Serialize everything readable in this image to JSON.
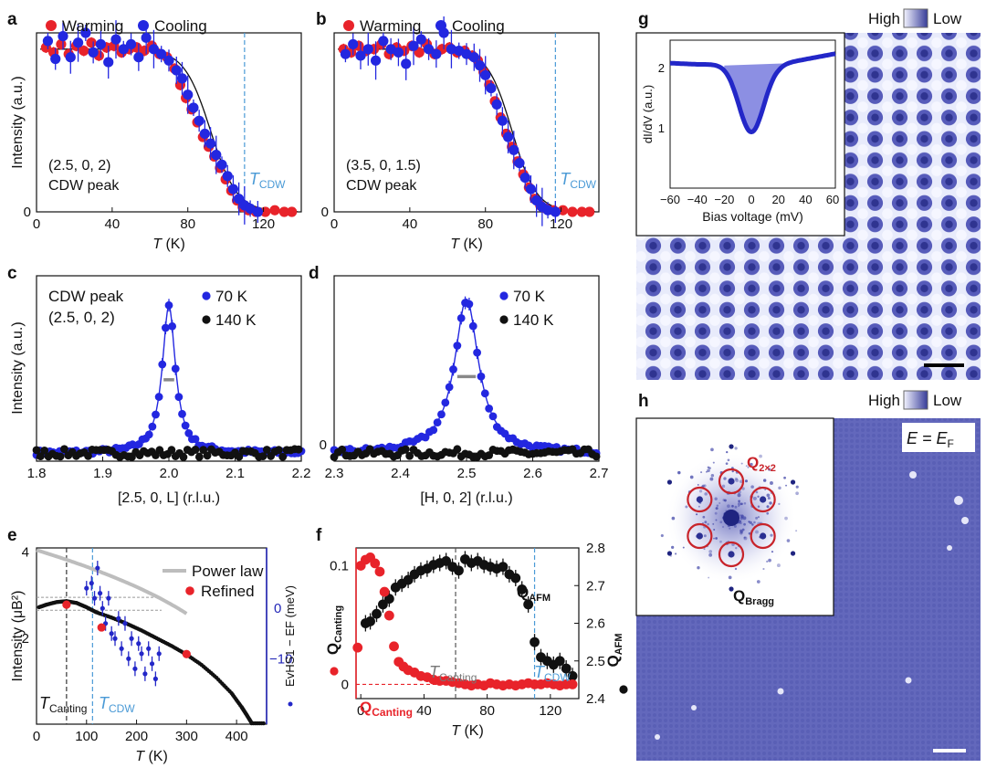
{
  "figure": {
    "panel_labels": [
      "a",
      "b",
      "c",
      "d",
      "e",
      "f",
      "g",
      "h"
    ],
    "panels": {
      "a": {
        "legend": [
          "Warming",
          "Cooling"
        ],
        "xlabel": [
          "T",
          " (K)"
        ],
        "ylabel": "Intensity (a.u.)",
        "xticks": [
          "0",
          "40",
          "80",
          "120"
        ],
        "yticks": [
          "0"
        ],
        "annot": [
          "(2.5, 0, 2)",
          "CDW peak"
        ],
        "tcdw": [
          "T",
          "CDW"
        ]
      },
      "b": {
        "legend": [
          "Warming",
          "Cooling"
        ],
        "xlabel": [
          "T",
          " (K)"
        ],
        "xticks": [
          "0",
          "40",
          "80",
          "120"
        ],
        "yticks": [
          "0"
        ],
        "annot": [
          "(3.5, 0, 1.5)",
          "CDW peak"
        ],
        "tcdw": [
          "T",
          "CDW"
        ]
      },
      "c": {
        "legend": [
          "70 K",
          "140 K"
        ],
        "xlabel": "[2.5, 0, L] (r.l.u.)",
        "ylabel": "Intensity (a.u.)",
        "xticks": [
          "1.8",
          "1.9",
          "2.0",
          "2.1",
          "2.2"
        ],
        "annot": [
          "CDW peak",
          "(2.5, 0, 2)"
        ]
      },
      "d": {
        "legend": [
          "70 K",
          "140 K"
        ],
        "xlabel": "[H, 0, 2] (r.l.u.)",
        "xticks": [
          "2.3",
          "2.4",
          "2.5",
          "2.6",
          "2.7"
        ],
        "yticks": [
          "0"
        ]
      },
      "e": {
        "legend": [
          "Power law",
          "Refined"
        ],
        "xlabel": [
          "T",
          " (K)"
        ],
        "ylabel": "Intensity  (μB²)",
        "xticks": [
          "0",
          "100",
          "200",
          "300",
          "400"
        ],
        "yticks_left": [
          "2",
          "4"
        ],
        "yticks_right": [
          "0",
          "−10"
        ],
        "ylabel_right": "EvHS1 − EF (meV)",
        "tcanting": [
          "T",
          "Canting"
        ],
        "tcdw": [
          "T",
          "CDW"
        ]
      },
      "f": {
        "xlabel": [
          "T",
          " (K)"
        ],
        "xticks": [
          "0",
          "40",
          "80",
          "120"
        ],
        "yticks_left": [
          "0",
          "0.1"
        ],
        "yticks_right": [
          "2.4",
          "2.5",
          "2.6",
          "2.7",
          "2.8"
        ],
        "ylabel_left": "QCanting",
        "ylabel_right": "QAFM",
        "qafm": [
          "Q",
          "AFM"
        ],
        "qcanting": [
          "Q",
          "Canting"
        ],
        "tcanting": [
          "T",
          "Canting"
        ],
        "tcdw": [
          "T",
          "CDW"
        ]
      },
      "g": {
        "colorbar": [
          "High",
          "Low"
        ],
        "inset_ylabel": "dI/dV (a.u.)",
        "inset_xlabel": "Bias voltage (mV)",
        "inset_xticks": [
          "−60",
          "−40",
          "−20",
          "0",
          "20",
          "40",
          "60"
        ],
        "inset_yticks": [
          "1",
          "2"
        ]
      },
      "h": {
        "colorbar": [
          "High",
          "Low"
        ],
        "energy": [
          "E = E",
          "F"
        ],
        "q2x2": [
          "Q",
          "2×2"
        ],
        "qbragg": [
          "Q",
          "Bragg"
        ]
      }
    }
  },
  "chart_data": [
    {
      "id": "a",
      "type": "scatter",
      "x_range": [
        0,
        140
      ],
      "y_range": [
        0,
        1.1
      ],
      "series": [
        {
          "name": "Warming",
          "x": [
            5,
            9,
            13,
            17,
            21,
            25,
            29,
            33,
            37,
            41,
            45,
            49,
            53,
            57,
            61,
            65,
            69,
            73,
            76,
            79,
            82,
            85,
            88,
            91,
            94,
            97,
            100,
            103,
            106,
            109,
            112,
            116,
            121,
            126,
            131,
            135
          ],
          "y": [
            1.01,
            0.98,
            1.03,
            0.97,
            1.02,
            0.99,
            1.04,
            0.96,
            1.01,
            1.02,
            0.98,
            1.0,
            1.01,
            0.99,
            1.02,
            0.97,
            0.95,
            0.88,
            0.78,
            0.7,
            0.63,
            0.55,
            0.46,
            0.4,
            0.34,
            0.27,
            0.2,
            0.13,
            0.07,
            0.03,
            0.01,
            0.0,
            0.0,
            0.01,
            0.0,
            0.0
          ]
        },
        {
          "name": "Cooling",
          "x": [
            6,
            10,
            14,
            18,
            22,
            26,
            30,
            34,
            38,
            42,
            46,
            50,
            54,
            58,
            62,
            66,
            70,
            74,
            77,
            80,
            83,
            86,
            89,
            92,
            95,
            98,
            101,
            104,
            107,
            110,
            113,
            117
          ],
          "y": [
            1.05,
            0.94,
            1.08,
            0.95,
            1.04,
            1.1,
            0.98,
            1.03,
            0.92,
            1.06,
            1.0,
            1.03,
            0.95,
            1.07,
            1.0,
            0.97,
            0.93,
            0.87,
            0.82,
            0.72,
            0.64,
            0.56,
            0.48,
            0.42,
            0.35,
            0.29,
            0.22,
            0.14,
            0.08,
            0.04,
            0.02,
            0.0
          ]
        }
      ],
      "fit": {
        "x0": 92,
        "w": 7,
        "A": 1.0
      },
      "tcdw": 110
    },
    {
      "id": "b",
      "type": "scatter",
      "x_range": [
        0,
        140
      ],
      "y_range": [
        0,
        1.1
      ],
      "series": [
        {
          "name": "Warming",
          "x": [
            5,
            9,
            13,
            17,
            21,
            25,
            29,
            33,
            37,
            41,
            45,
            49,
            53,
            57,
            61,
            65,
            69,
            73,
            76,
            79,
            82,
            85,
            88,
            91,
            94,
            97,
            100,
            103,
            106,
            109,
            112,
            116,
            121,
            126,
            131,
            135
          ],
          "y": [
            1.0,
            0.98,
            1.02,
            0.99,
            1.0,
            1.03,
            0.97,
            1.01,
            0.99,
            1.02,
            0.98,
            1.03,
            0.97,
            1.0,
            1.01,
            0.98,
            0.99,
            0.96,
            0.93,
            0.86,
            0.78,
            0.68,
            0.58,
            0.48,
            0.4,
            0.31,
            0.23,
            0.15,
            0.08,
            0.04,
            0.02,
            0.01,
            0.01,
            0.0,
            0.0,
            0.0
          ]
        },
        {
          "name": "Cooling",
          "x": [
            6,
            10,
            14,
            18,
            22,
            26,
            30,
            34,
            38,
            42,
            46,
            50,
            54,
            58,
            62,
            66,
            70,
            74,
            77,
            80,
            83,
            86,
            89,
            92,
            95,
            98,
            101,
            104,
            107,
            110,
            113,
            117
          ],
          "y": [
            0.97,
            1.03,
            0.96,
            1.0,
            0.93,
            1.05,
            1.0,
            0.98,
            0.91,
            1.02,
            1.06,
            1.0,
            0.97,
            1.1,
            1.0,
            0.99,
            0.97,
            0.95,
            0.9,
            0.84,
            0.76,
            0.66,
            0.56,
            0.46,
            0.38,
            0.3,
            0.21,
            0.14,
            0.07,
            0.03,
            0.01,
            0.0
          ]
        }
      ],
      "fit": {
        "x0": 94,
        "w": 6.5,
        "A": 1.0
      },
      "tcdw": 117
    },
    {
      "id": "c",
      "type": "scatter",
      "x_range": [
        1.8,
        2.2
      ],
      "y_range": [
        -0.05,
        1.1
      ],
      "series": [
        {
          "name": "70 K",
          "peak": {
            "center": 2.0,
            "gamma": 0.012,
            "A": 0.91
          },
          "x_start": 1.8,
          "x_end": 2.2,
          "step": 0.005
        },
        {
          "name": "140 K",
          "flat": true,
          "x_start": 1.8,
          "x_end": 2.2,
          "step": 0.006
        }
      ],
      "fwhm_bar": [
        1.992,
        2.008
      ]
    },
    {
      "id": "d",
      "type": "scatter",
      "x_range": [
        2.3,
        2.7
      ],
      "y_range": [
        -0.05,
        1.1
      ],
      "series": [
        {
          "name": "70 K",
          "peak": {
            "center": 2.5,
            "gamma": 0.022,
            "A": 0.95
          },
          "x_start": 2.3,
          "x_end": 2.7,
          "step": 0.006
        },
        {
          "name": "140 K",
          "flat": true,
          "x_start": 2.3,
          "x_end": 2.7,
          "step": 0.006
        }
      ],
      "fwhm_bar": [
        2.486,
        2.514
      ]
    },
    {
      "id": "e",
      "type": "scatter",
      "x_range": [
        0,
        460
      ],
      "y_range": [
        0,
        4.1
      ],
      "y_right_range": [
        -23,
        12
      ],
      "power_law": {
        "A": 4.05,
        "Tn": 430,
        "beta": 0.38
      },
      "black_curve": {
        "x": [
          5,
          20,
          40,
          60,
          80,
          100,
          120,
          150,
          180,
          210,
          240,
          270,
          300,
          330,
          360,
          390,
          410,
          420,
          430
        ],
        "y": [
          2.72,
          2.78,
          2.84,
          2.86,
          2.82,
          2.72,
          2.6,
          2.48,
          2.34,
          2.18,
          2.0,
          1.82,
          1.62,
          1.38,
          1.08,
          0.72,
          0.4,
          0.22,
          0.03
        ]
      },
      "refined": {
        "x": [
          60,
          130,
          300
        ],
        "y": [
          2.78,
          2.25,
          1.63
        ]
      },
      "evhs": {
        "x": [
          100,
          110,
          116,
          122,
          127,
          132,
          138,
          144,
          150,
          157,
          164,
          170,
          177,
          184,
          190,
          197,
          204,
          210,
          217,
          224,
          231,
          238,
          245
        ],
        "y": [
          4,
          5,
          2,
          8,
          3,
          0,
          -3,
          2,
          -5,
          -6,
          -2,
          -8,
          -3,
          -10,
          -6,
          -12,
          -7,
          -9,
          -13,
          -8,
          -11,
          -14,
          -9
        ]
      },
      "tcanting": 60,
      "tcdw": 112
    },
    {
      "id": "f",
      "type": "scatter",
      "x_range": [
        -3,
        138
      ],
      "y_range": [
        -0.012,
        0.115
      ],
      "y_right_range": [
        2.4,
        2.8
      ],
      "series": [
        {
          "name": "QCanting",
          "x": [
            0,
            3,
            6,
            9,
            12,
            15,
            18,
            21,
            24,
            27,
            30,
            34,
            38,
            42,
            46,
            50,
            54,
            58,
            62,
            66,
            70,
            74,
            78,
            82,
            86,
            90,
            94,
            98,
            102,
            106,
            110,
            114,
            118,
            122,
            126,
            130,
            134
          ],
          "y": [
            0.1,
            0.105,
            0.107,
            0.102,
            0.095,
            0.078,
            0.058,
            0.032,
            0.019,
            0.015,
            0.012,
            0.01,
            0.007,
            0.006,
            0.004,
            0.003,
            0.003,
            0.002,
            0.001,
            0.0,
            -0.001,
            0.0,
            -0.001,
            0.001,
            0.0,
            -0.001,
            0.0,
            -0.001,
            0.0,
            0.001,
            0.0,
            0.0,
            0.001,
            0.0,
            -0.001,
            0.0,
            0.0
          ],
          "extra": {
            "x": -2,
            "y": 0.031
          }
        },
        {
          "name": "QAFM",
          "x": [
            3,
            6,
            10,
            14,
            18,
            22,
            26,
            30,
            34,
            38,
            42,
            46,
            50,
            54,
            58,
            62,
            66,
            70,
            74,
            78,
            82,
            86,
            90,
            94,
            98,
            102,
            106,
            110,
            114,
            118,
            122,
            126,
            130,
            134
          ],
          "y": [
            2.6,
            2.605,
            2.625,
            2.65,
            2.665,
            2.695,
            2.705,
            2.715,
            2.73,
            2.74,
            2.745,
            2.755,
            2.76,
            2.765,
            2.75,
            2.74,
            2.77,
            2.76,
            2.765,
            2.755,
            2.75,
            2.745,
            2.75,
            2.73,
            2.72,
            2.69,
            2.65,
            2.55,
            2.51,
            2.5,
            2.49,
            2.5,
            2.48,
            2.46
          ]
        }
      ],
      "tcanting": 60,
      "tcdw": 110
    },
    {
      "id": "g_inset",
      "type": "area",
      "x_range": [
        -60,
        62
      ],
      "y_range": [
        0,
        2.45
      ],
      "curve": {
        "baseline": 2.05,
        "dip_center": 0,
        "dip_depth": 1.12,
        "dip_width": 13,
        "tail_slope": 0.0035
      }
    }
  ]
}
